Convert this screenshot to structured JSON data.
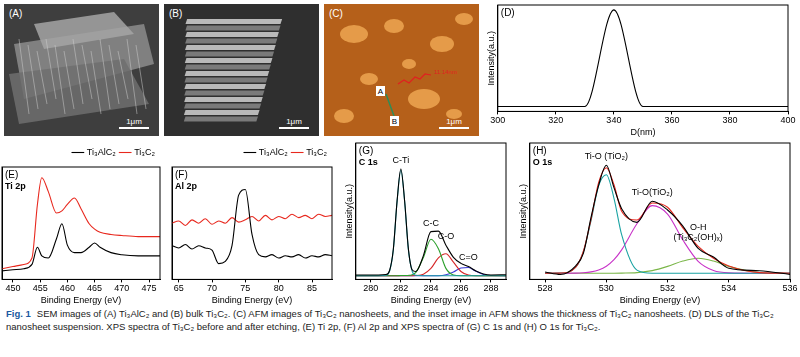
{
  "images": [
    {
      "label": "(A)",
      "scale_bar": "1μm"
    },
    {
      "label": "(B)",
      "scale_bar": "1μm"
    },
    {
      "label": "(C)",
      "scale_bar": "1μm",
      "markers": [
        "A",
        "B"
      ],
      "inset_text": "11.14nm"
    }
  ],
  "chart_data": [
    {
      "type": "line",
      "panel": "(D)",
      "x_label": "D(nm)",
      "y_label": "Intensity(a.u.)",
      "x": [
        300,
        320,
        330,
        340,
        350,
        360,
        380,
        400
      ],
      "series": [
        {
          "color": "#000000",
          "values": [
            0,
            0,
            0,
            100,
            0,
            0,
            0,
            0
          ]
        }
      ],
      "xlim": [
        300,
        400
      ],
      "xticks": [
        300,
        320,
        340,
        360,
        380,
        400
      ],
      "ylim": [
        -5,
        105
      ],
      "tick_labels": "x",
      "grid": false
    },
    {
      "type": "line",
      "panel": "(E)",
      "title": "Ti 2p",
      "x_label": "Binding Energy (eV)",
      "x": [
        448,
        450,
        452,
        453.5,
        454.5,
        455.3,
        456.5,
        458,
        459,
        460,
        461.3,
        462.5,
        464,
        465,
        466,
        468,
        470,
        473,
        477
      ],
      "series": [
        {
          "name": "Ti₃AlC₂",
          "color": "#000000",
          "values": [
            8,
            9,
            10,
            14,
            30,
            22,
            20,
            38,
            52,
            32,
            25,
            25,
            30,
            34,
            30,
            25,
            23,
            22,
            22
          ]
        },
        {
          "name": "Ti₃C₂",
          "color": "#e8281e",
          "values": [
            10,
            12,
            14,
            20,
            70,
            95,
            82,
            62,
            64,
            70,
            76,
            66,
            52,
            47,
            44,
            42,
            41,
            40,
            40
          ]
        }
      ],
      "xlim": [
        448,
        477
      ],
      "xticks": [
        450,
        455,
        460,
        465,
        470,
        475
      ],
      "ylim": [
        0,
        105
      ],
      "tick_labels": "x",
      "grid": false,
      "legend": "upper right"
    },
    {
      "type": "line",
      "panel": "(F)",
      "title": "Al 2p",
      "x_label": "Binding Energy (eV)",
      "x": [
        64,
        65,
        66,
        67,
        68,
        69,
        70,
        71,
        72,
        73,
        74,
        75,
        76,
        77,
        78,
        79,
        80,
        81,
        82,
        83,
        84,
        85,
        86,
        87,
        88
      ],
      "series": [
        {
          "name": "Ti₃AlC₂",
          "color": "#000000",
          "values": [
            30,
            28,
            31,
            27,
            30,
            28,
            26,
            14,
            16,
            30,
            75,
            80,
            40,
            22,
            20,
            22,
            19,
            21,
            20,
            22,
            19,
            21,
            20,
            22,
            21
          ]
        },
        {
          "name": "Ti₃C₂",
          "color": "#e8281e",
          "values": [
            50,
            52,
            48,
            53,
            50,
            54,
            49,
            52,
            50,
            55,
            51,
            53,
            56,
            52,
            57,
            53,
            56,
            54,
            58,
            55,
            57,
            54,
            58,
            56,
            57
          ]
        }
      ],
      "xlim": [
        64,
        88
      ],
      "xticks": [
        65,
        70,
        75,
        80,
        85
      ],
      "ylim": [
        0,
        100
      ],
      "tick_labels": "x",
      "grid": false,
      "legend": "upper right"
    },
    {
      "type": "line",
      "panel": "(G)",
      "title": "C 1s",
      "x_label": "Binding Energy (eV)",
      "y_label": "Intensity(a.u.)",
      "x": [
        279,
        280,
        280.5,
        281,
        281.25,
        281.5,
        281.75,
        282,
        282.25,
        282.5,
        282.75,
        283,
        283.5,
        284,
        284.5,
        285,
        285.5,
        286,
        286.5,
        287,
        287.5,
        288,
        289
      ],
      "series": [
        {
          "color": "#000000",
          "values": [
            3.5,
            3.6,
            3.6,
            3.9,
            7.2,
            24.5,
            63.5,
            89,
            63.4,
            24.8,
            7.8,
            6.4,
            19.2,
            38.5,
            38.9,
            27.6,
            17.8,
            12.9,
            10.4,
            6.8,
            4.4,
            3.6,
            3.8
          ]
        },
        {
          "name": "C-Ti",
          "color": "#1b9aa6",
          "values": [
            3,
            3,
            3,
            3.3,
            6.7,
            24,
            63,
            88,
            63,
            24,
            6.7,
            3.3,
            3,
            3,
            3,
            3,
            3,
            3,
            3,
            3,
            3,
            3,
            3
          ]
        },
        {
          "name": "C-C",
          "color": "#2ca02c",
          "values": [
            3,
            3,
            3,
            3,
            3,
            3,
            3,
            3.1,
            3.1,
            3.2,
            3.8,
            5.7,
            17.6,
            32.4,
            24.8,
            8.9,
            3.6,
            3,
            3,
            3,
            3,
            3,
            3
          ]
        },
        {
          "name": "C-O",
          "color": "#d62728",
          "values": [
            3,
            3,
            3,
            3,
            3,
            3,
            3,
            3,
            3,
            3,
            3,
            3.1,
            4.2,
            8.8,
            17.4,
            20.7,
            13.9,
            6.4,
            3.5,
            3,
            3,
            3,
            3
          ]
        },
        {
          "name": "C=O",
          "color": "#3b3bd6",
          "values": [
            3,
            3,
            3,
            3,
            3,
            3,
            3,
            3,
            3,
            3,
            3,
            3,
            3,
            3,
            3,
            3.7,
            5.9,
            9.2,
            9.6,
            6.5,
            3.9,
            3.1,
            3
          ]
        }
      ],
      "xlim": [
        279,
        289
      ],
      "xticks": [
        280,
        282,
        284,
        286,
        288
      ],
      "ylim": [
        0,
        110
      ],
      "tick_labels": "x",
      "grid": false
    },
    {
      "type": "line",
      "panel": "(H)",
      "title": "O 1s",
      "x_label": "Binding Energy (eV)",
      "y_label": "Intensity(a.u.)",
      "x": [
        528,
        528.5,
        529,
        529.25,
        529.5,
        529.75,
        530,
        530.25,
        530.5,
        531,
        531.5,
        532,
        532.5,
        533,
        533.5,
        534,
        535,
        536
      ],
      "series": [
        {
          "color": "#000000",
          "values": [
            6,
            4,
            11,
            21,
            50,
            76,
            92,
            74,
            57,
            46,
            63,
            56,
            43,
            25,
            18,
            9,
            7,
            4
          ]
        },
        {
          "color": "#e8281e",
          "values": [
            5,
            5.1,
            9.9,
            22.7,
            48.5,
            78.2,
            90,
            76.3,
            55,
            47.9,
            61.6,
            58.2,
            41.6,
            26.6,
            17,
            10.8,
            5.5,
            5
          ]
        },
        {
          "name": "Ti-O (TiO₂)",
          "color": "#1aa3a3",
          "values": [
            5,
            5.1,
            9.8,
            22.3,
            47.4,
            75.6,
            84.4,
            65.4,
            36.1,
            7.5,
            5,
            5,
            5,
            5,
            5,
            5,
            5,
            5
          ]
        },
        {
          "name": "Ti-O(TiO₂)",
          "color": "#c832c8",
          "values": [
            5,
            5,
            5.1,
            5.4,
            6.1,
            7.6,
            10.6,
            15.9,
            23.8,
            44.9,
            59.5,
            52.7,
            31.8,
            14.6,
            7.2,
            5.3,
            5,
            5
          ]
        },
        {
          "name": "O-H (Ti₃C₂(OH)ₓ)",
          "color": "#7ab648",
          "values": [
            5,
            5,
            5,
            5,
            5,
            5,
            5,
            5,
            5.1,
            5.5,
            7.1,
            10.5,
            14.8,
            17,
            14.8,
            10.5,
            5.5,
            5
          ]
        }
      ],
      "xlim": [
        527.5,
        536
      ],
      "xticks": [
        528,
        530,
        532,
        534,
        536
      ],
      "ylim": [
        0,
        110
      ],
      "tick_labels": "x",
      "grid": false
    }
  ],
  "caption": {
    "label": "Fig. 1",
    "text": "SEM images of (A) Ti₃AlC₂ and (B) bulk Ti₃C₂. (C) AFM images of Ti₃C₂ nanosheets, and the inset image in AFM shows the thickness of Ti₃C₂ nanosheets. (D) DLS of the Ti₃C₂ nanosheet suspension. XPS spectra of Ti₃C₂ before and after etching, (E) Ti 2p, (F) Al 2p and XPS spectra of (G) C 1s and (H) O 1s for Ti₃C₂."
  }
}
